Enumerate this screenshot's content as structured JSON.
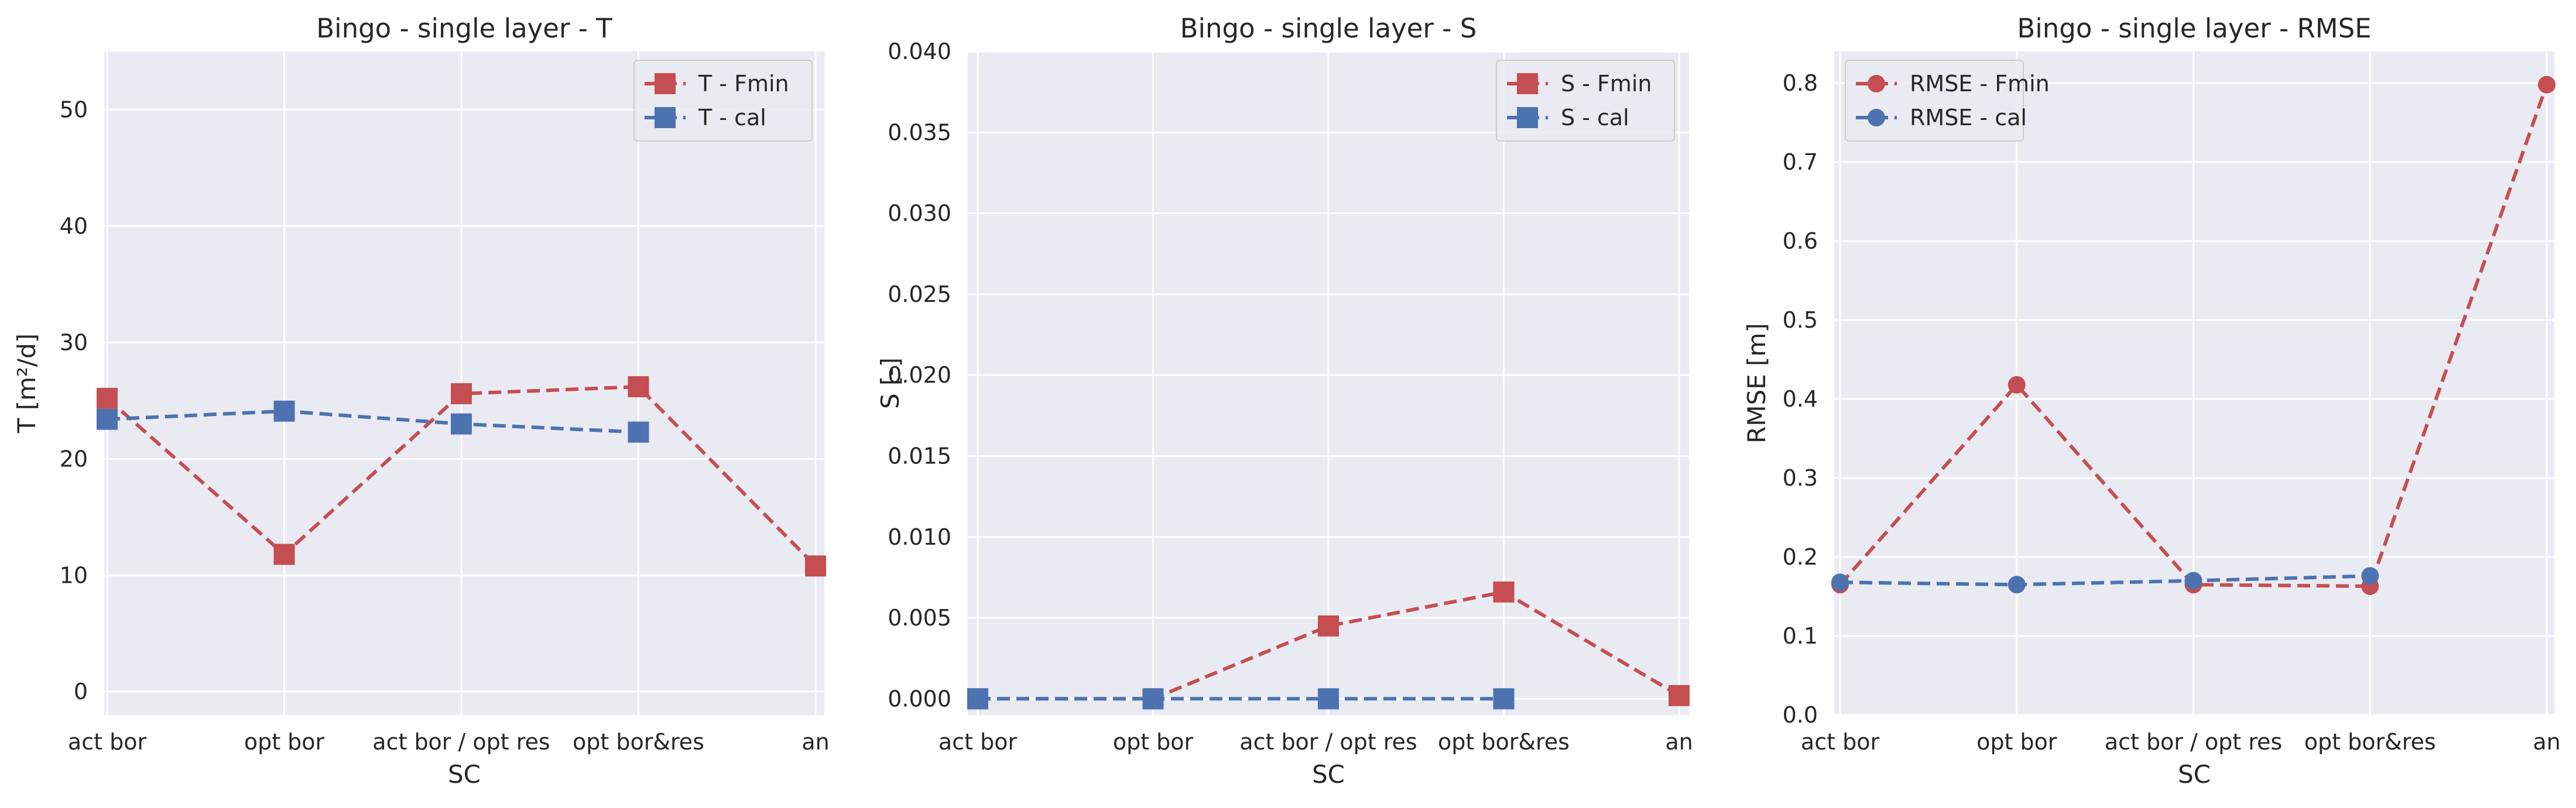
{
  "chart_data": [
    {
      "type": "line",
      "title": "Bingo - single layer - T",
      "xlabel": "SC",
      "ylabel": "T [m²/d]",
      "categories": [
        "act bor",
        "opt bor",
        "act bor / opt res",
        "opt bor&res",
        "an"
      ],
      "ylim": [
        -2,
        55
      ],
      "yticks": [
        0,
        10,
        20,
        30,
        40,
        50
      ],
      "grid": true,
      "legend": "top-right",
      "marker": "square",
      "series": [
        {
          "name": "T - Fmin",
          "color": "#c44e52",
          "values": [
            25.2,
            11.8,
            25.6,
            26.2,
            10.8
          ]
        },
        {
          "name": "T - cal",
          "color": "#4c72b0",
          "values": [
            23.4,
            24.1,
            23.0,
            22.3,
            null
          ]
        }
      ]
    },
    {
      "type": "line",
      "title": "Bingo - single layer - S",
      "xlabel": "SC",
      "ylabel": "S [-]",
      "categories": [
        "act bor",
        "opt bor",
        "act bor / opt res",
        "opt bor&res",
        "an"
      ],
      "ylim": [
        -0.001,
        0.04
      ],
      "yticks": [
        0.0,
        0.005,
        0.01,
        0.015,
        0.02,
        0.025,
        0.03,
        0.035,
        0.04
      ],
      "ytick_labels": [
        "0.000",
        "0.005",
        "0.010",
        "0.015",
        "0.020",
        "0.025",
        "0.030",
        "0.035",
        "0.040"
      ],
      "grid": true,
      "legend": "top-right",
      "marker": "square",
      "series": [
        {
          "name": "S - Fmin",
          "color": "#c44e52",
          "values": [
            0.0,
            0.0,
            0.0045,
            0.0066,
            0.0002
          ]
        },
        {
          "name": "S - cal",
          "color": "#4c72b0",
          "values": [
            0.0,
            0.0,
            0.0,
            0.0,
            null
          ]
        }
      ]
    },
    {
      "type": "line",
      "title": "Bingo - single layer - RMSE",
      "xlabel": "SC",
      "ylabel": "RMSE [m]",
      "categories": [
        "act bor",
        "opt bor",
        "act bor / opt res",
        "opt bor&res",
        "an"
      ],
      "ylim": [
        0,
        0.84
      ],
      "yticks": [
        0.0,
        0.1,
        0.2,
        0.3,
        0.4,
        0.5,
        0.6,
        0.7,
        0.8
      ],
      "ytick_labels": [
        "0.0",
        "0.1",
        "0.2",
        "0.3",
        "0.4",
        "0.5",
        "0.6",
        "0.7",
        "0.8"
      ],
      "grid": true,
      "legend": "top-left",
      "marker": "circle",
      "series": [
        {
          "name": "RMSE - Fmin",
          "color": "#c44e52",
          "values": [
            0.165,
            0.418,
            0.165,
            0.163,
            0.798
          ]
        },
        {
          "name": "RMSE - cal",
          "color": "#4c72b0",
          "values": [
            0.168,
            0.165,
            0.17,
            0.176,
            null
          ]
        }
      ]
    }
  ]
}
